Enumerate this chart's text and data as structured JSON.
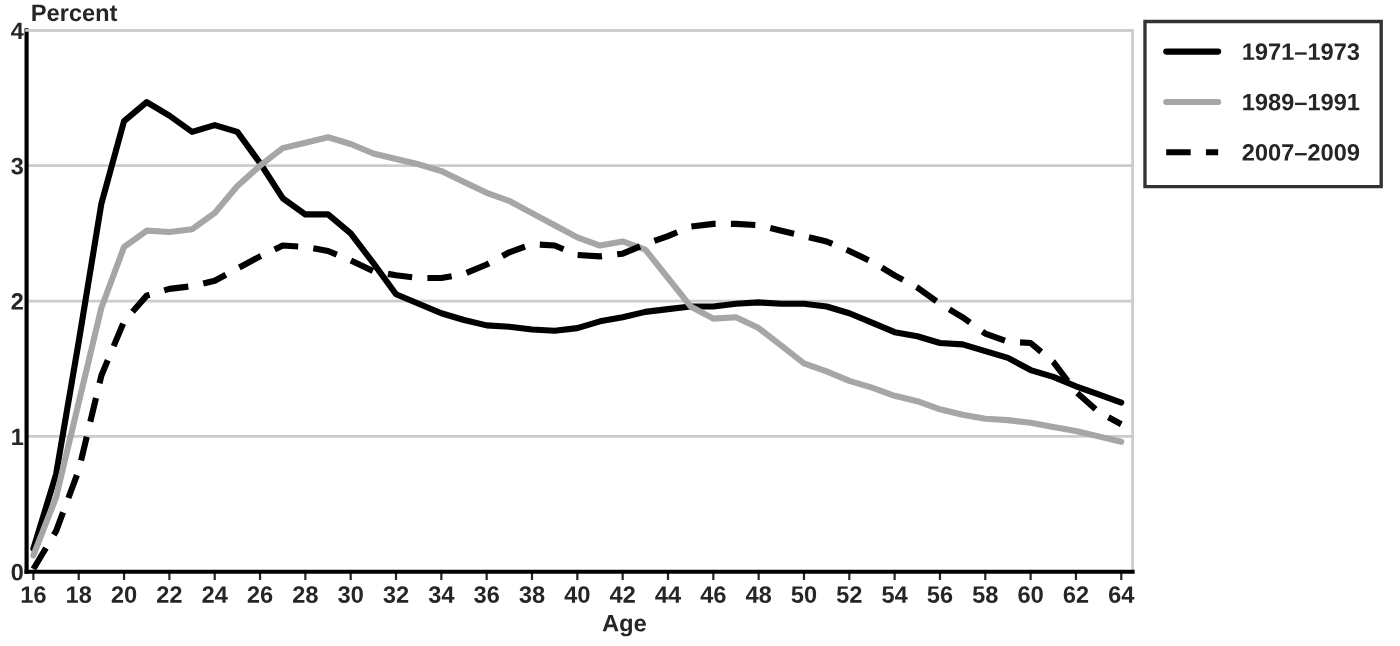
{
  "chart_data": {
    "type": "line",
    "xlabel": "Age",
    "ylabel": "Percent",
    "x": [
      16,
      17,
      18,
      19,
      20,
      21,
      22,
      23,
      24,
      25,
      26,
      27,
      28,
      29,
      30,
      31,
      32,
      33,
      34,
      35,
      36,
      37,
      38,
      39,
      40,
      41,
      42,
      43,
      44,
      45,
      46,
      47,
      48,
      49,
      50,
      51,
      52,
      53,
      54,
      55,
      56,
      57,
      58,
      59,
      60,
      61,
      62,
      63,
      64
    ],
    "series": [
      {
        "name": "1971–1973",
        "color": "#000000",
        "line_style": "solid",
        "values": [
          0.17,
          0.72,
          1.7,
          2.72,
          3.33,
          3.47,
          3.37,
          3.25,
          3.3,
          3.25,
          3.02,
          2.76,
          2.64,
          2.64,
          2.5,
          2.28,
          2.05,
          1.98,
          1.91,
          1.86,
          1.82,
          1.81,
          1.79,
          1.78,
          1.8,
          1.85,
          1.88,
          1.92,
          1.94,
          1.96,
          1.96,
          1.98,
          1.99,
          1.98,
          1.98,
          1.96,
          1.91,
          1.84,
          1.77,
          1.74,
          1.69,
          1.68,
          1.63,
          1.58,
          1.49,
          1.44,
          1.37,
          1.31,
          1.25
        ]
      },
      {
        "name": "1989–1991",
        "color": "#a6a6a6",
        "line_style": "solid",
        "values": [
          0.12,
          0.55,
          1.25,
          1.95,
          2.4,
          2.52,
          2.51,
          2.53,
          2.65,
          2.85,
          3.0,
          3.13,
          3.17,
          3.21,
          3.16,
          3.09,
          3.05,
          3.01,
          2.96,
          2.88,
          2.8,
          2.74,
          2.65,
          2.56,
          2.47,
          2.41,
          2.44,
          2.38,
          2.17,
          1.96,
          1.87,
          1.88,
          1.8,
          1.67,
          1.54,
          1.48,
          1.41,
          1.36,
          1.3,
          1.26,
          1.2,
          1.16,
          1.13,
          1.12,
          1.1,
          1.07,
          1.04,
          1.0,
          0.96
        ]
      },
      {
        "name": "2007–2009",
        "color": "#000000",
        "line_style": "dashed",
        "values": [
          0.02,
          0.3,
          0.75,
          1.45,
          1.85,
          2.04,
          2.09,
          2.11,
          2.15,
          2.24,
          2.33,
          2.41,
          2.4,
          2.37,
          2.3,
          2.22,
          2.19,
          2.17,
          2.17,
          2.2,
          2.27,
          2.36,
          2.42,
          2.41,
          2.34,
          2.33,
          2.35,
          2.42,
          2.48,
          2.55,
          2.57,
          2.57,
          2.56,
          2.52,
          2.48,
          2.44,
          2.37,
          2.29,
          2.19,
          2.1,
          1.98,
          1.88,
          1.76,
          1.7,
          1.69,
          1.55,
          1.33,
          1.18,
          1.09
        ]
      }
    ],
    "xlim": [
      15.7,
      64.5
    ],
    "xticks": [
      16,
      18,
      20,
      22,
      24,
      26,
      28,
      30,
      32,
      34,
      36,
      38,
      40,
      42,
      44,
      46,
      48,
      50,
      52,
      54,
      56,
      58,
      60,
      62,
      64
    ],
    "ylim": [
      0,
      4
    ],
    "yticks": [
      0,
      1,
      2,
      3,
      4
    ],
    "grid": "y",
    "legend": "top right",
    "marker": "none"
  }
}
